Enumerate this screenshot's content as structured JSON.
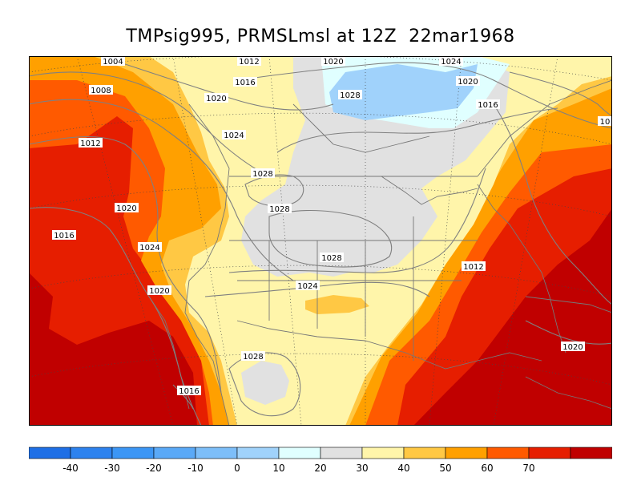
{
  "title": "TMPsig995, PRMSLmsl at 12Z  22mar1968",
  "isobar_labels": [
    "1004",
    "1012",
    "1020",
    "1024",
    "1008",
    "1016",
    "1020",
    "1016",
    "1028",
    "1020",
    "1024",
    "1012",
    "1028",
    "1028",
    "1020",
    "1016",
    "1024",
    "1028",
    "1024",
    "1012",
    "1020",
    "1028",
    "1016",
    "1020",
    "10"
  ],
  "colorbar": {
    "ticks": [
      "-40",
      "-30",
      "-20",
      "-10",
      "0",
      "10",
      "20",
      "30",
      "40",
      "50",
      "60",
      "70"
    ],
    "colors": [
      "#1e6fe6",
      "#2d82ee",
      "#3c96f5",
      "#5aa9f7",
      "#7dbef9",
      "#a0d2fb",
      "#e0ffff",
      "#e1e1e1",
      "#fff5aa",
      "#ffc844",
      "#ffa000",
      "#ff5a00",
      "#e61e00",
      "#c00000"
    ]
  }
}
